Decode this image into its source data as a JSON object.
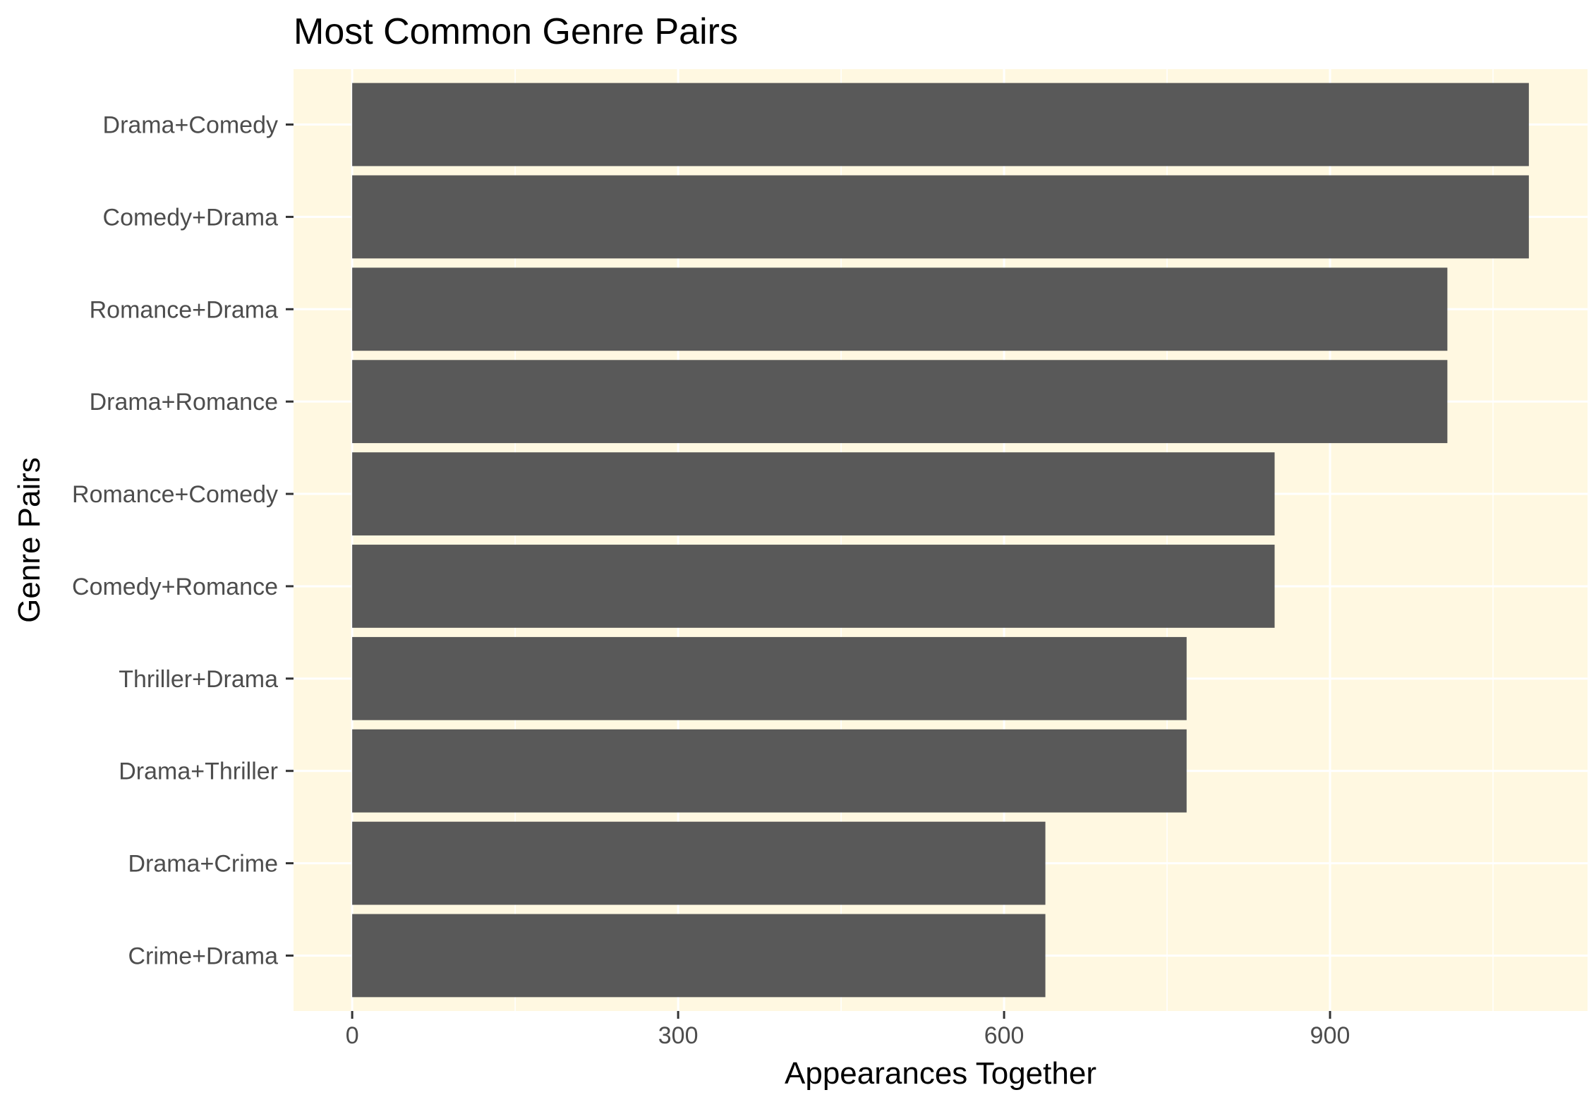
{
  "chart_data": {
    "type": "bar",
    "orientation": "horizontal",
    "title": "Most Common Genre Pairs",
    "xlabel": "Appearances Together",
    "ylabel": "Genre Pairs",
    "categories": [
      "Drama+Comedy",
      "Comedy+Drama",
      "Romance+Drama",
      "Drama+Romance",
      "Romance+Comedy",
      "Comedy+Romance",
      "Thriller+Drama",
      "Drama+Thriller",
      "Drama+Crime",
      "Crime+Drama"
    ],
    "values": [
      1083,
      1083,
      1008,
      1008,
      849,
      849,
      768,
      768,
      638,
      638
    ],
    "xlim": [
      -54,
      1137
    ],
    "xticks": [
      0,
      300,
      600,
      900
    ],
    "xtick_labels": [
      "0",
      "300",
      "600",
      "900"
    ],
    "grid": true,
    "colors": {
      "panel_background": "#FFF8E1",
      "bar_fill": "#595959",
      "grid_line": "#FFFFFF",
      "tick_text": "#4D4D4D",
      "title_text": "#000000"
    }
  }
}
